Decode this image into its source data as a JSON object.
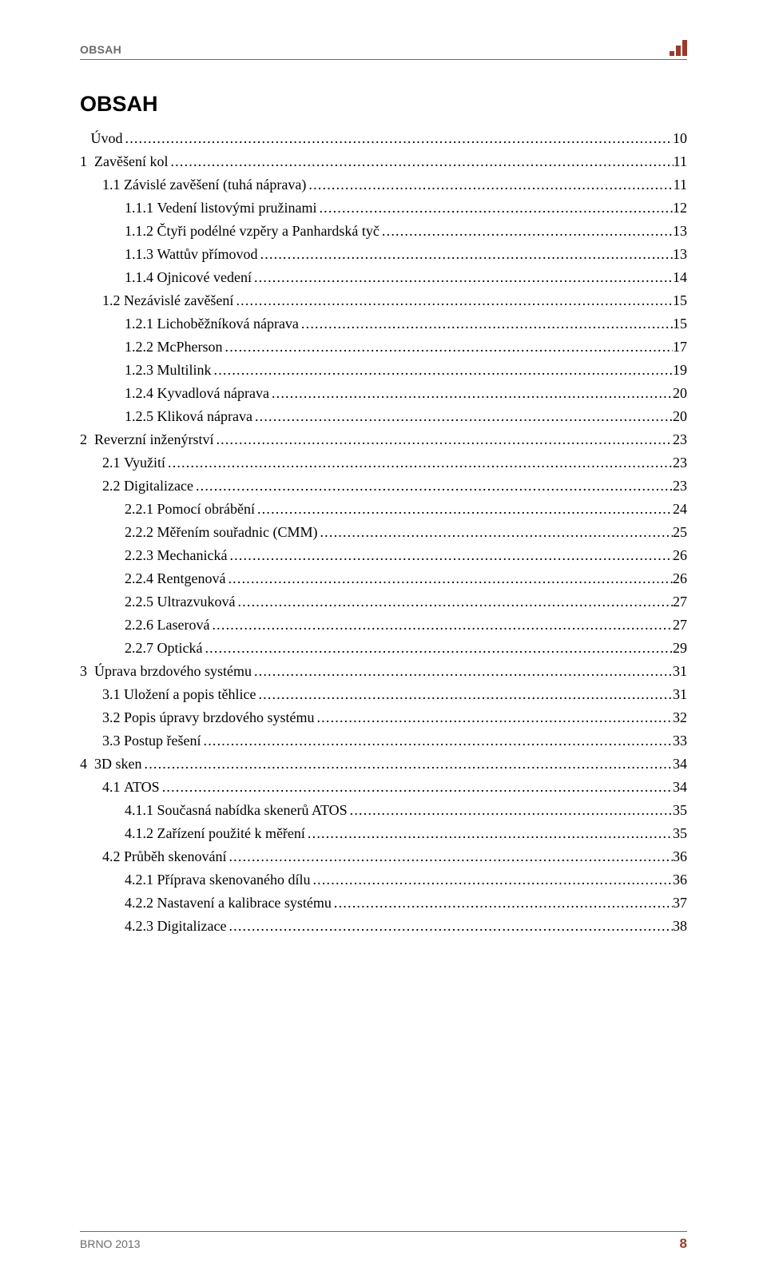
{
  "header": {
    "running_title": "OBSAH",
    "logo_color": "#9a3a2c"
  },
  "title": "OBSAH",
  "toc": [
    {
      "level": 0,
      "num": "",
      "label": "Úvod",
      "page": "10"
    },
    {
      "level": 0,
      "num": "1",
      "label": "Zavěšení kol",
      "page": "11"
    },
    {
      "level": 1,
      "num": "1.1",
      "label": "Závislé zavěšení (tuhá náprava)",
      "page": "11"
    },
    {
      "level": 2,
      "num": "1.1.1",
      "label": "Vedení listovými pružinami",
      "page": "12"
    },
    {
      "level": 2,
      "num": "1.1.2",
      "label": "Čtyři podélné vzpěry a Panhardská tyč",
      "page": "13"
    },
    {
      "level": 2,
      "num": "1.1.3",
      "label": "Wattův přímovod",
      "page": "13"
    },
    {
      "level": 2,
      "num": "1.1.4",
      "label": "Ojnicové vedení",
      "page": "14"
    },
    {
      "level": 1,
      "num": "1.2",
      "label": "Nezávislé zavěšení",
      "page": "15"
    },
    {
      "level": 2,
      "num": "1.2.1",
      "label": "Lichoběžníková náprava",
      "page": "15"
    },
    {
      "level": 2,
      "num": "1.2.2",
      "label": "McPherson",
      "page": "17"
    },
    {
      "level": 2,
      "num": "1.2.3",
      "label": "Multilink",
      "page": "19"
    },
    {
      "level": 2,
      "num": "1.2.4",
      "label": "Kyvadlová náprava",
      "page": "20"
    },
    {
      "level": 2,
      "num": "1.2.5",
      "label": "Kliková náprava",
      "page": "20"
    },
    {
      "level": 0,
      "num": "2",
      "label": "Reverzní inženýrství",
      "page": "23"
    },
    {
      "level": 1,
      "num": "2.1",
      "label": "Využití",
      "page": "23"
    },
    {
      "level": 1,
      "num": "2.2",
      "label": "Digitalizace",
      "page": "23"
    },
    {
      "level": 2,
      "num": "2.2.1",
      "label": "Pomocí obrábění",
      "page": "24"
    },
    {
      "level": 2,
      "num": "2.2.2",
      "label": "Měřením souřadnic (CMM)",
      "page": "25"
    },
    {
      "level": 2,
      "num": "2.2.3",
      "label": "Mechanická",
      "page": "26"
    },
    {
      "level": 2,
      "num": "2.2.4",
      "label": "Rentgenová",
      "page": "26"
    },
    {
      "level": 2,
      "num": "2.2.5",
      "label": "Ultrazvuková",
      "page": "27"
    },
    {
      "level": 2,
      "num": "2.2.6",
      "label": "Laserová",
      "page": "27"
    },
    {
      "level": 2,
      "num": "2.2.7",
      "label": "Optická",
      "page": "29"
    },
    {
      "level": 0,
      "num": "3",
      "label": "Úprava brzdového systému",
      "page": "31"
    },
    {
      "level": 1,
      "num": "3.1",
      "label": "Uložení a popis těhlice",
      "page": "31"
    },
    {
      "level": 1,
      "num": "3.2",
      "label": "Popis úpravy brzdového systému",
      "page": "32"
    },
    {
      "level": 1,
      "num": "3.3",
      "label": "Postup řešení",
      "page": "33"
    },
    {
      "level": 0,
      "num": "4",
      "label": "3D sken",
      "page": "34"
    },
    {
      "level": 1,
      "num": "4.1",
      "label": "ATOS",
      "page": "34"
    },
    {
      "level": 2,
      "num": "4.1.1",
      "label": "Současná nabídka skenerů ATOS",
      "page": "35"
    },
    {
      "level": 2,
      "num": "4.1.2",
      "label": "Zařízení použité k měření",
      "page": "35"
    },
    {
      "level": 1,
      "num": "4.2",
      "label": "Průběh skenování",
      "page": "36"
    },
    {
      "level": 2,
      "num": "4.2.1",
      "label": "Příprava skenovaného dílu",
      "page": "36"
    },
    {
      "level": 2,
      "num": "4.2.2",
      "label": "Nastavení a kalibrace systému",
      "page": "37"
    },
    {
      "level": 2,
      "num": "4.2.3",
      "label": "Digitalizace",
      "page": "38"
    }
  ],
  "number_col_width_ch_by_level": {
    "0": 3,
    "1": 4,
    "2": 6
  },
  "footer": {
    "left": "BRNO 2013",
    "page_number": "8",
    "accent_color": "#9a3a2c"
  },
  "colors": {
    "text": "#000000",
    "muted": "#6b6b6b",
    "accent": "#9a3a2c",
    "background": "#ffffff",
    "rule": "#6b6b6b"
  },
  "typography": {
    "body_font": "Times New Roman",
    "header_font": "Arial",
    "body_size_pt": 13,
    "title_size_pt": 20,
    "header_size_pt": 11
  }
}
